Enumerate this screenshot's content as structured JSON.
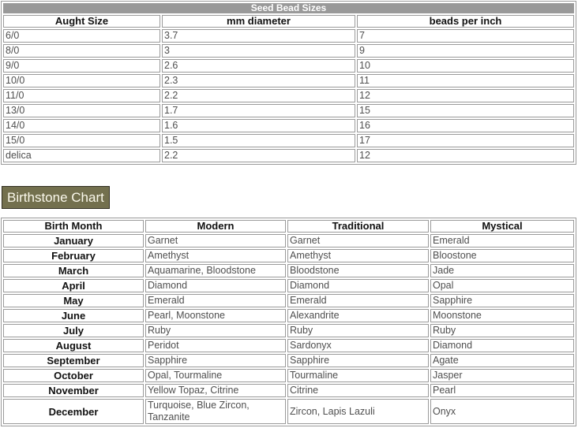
{
  "colors": {
    "table_border": "#9a9a9a",
    "title_bar_bg": "#999999",
    "title_bar_text": "#ffffff",
    "cell_text": "#4f4f4f",
    "header_text": "#111111",
    "heading_bg": "#73704E",
    "heading_text": "#FBF9EC",
    "heading_border": "#302E20"
  },
  "seed_table": {
    "title": "Seed Bead Sizes",
    "columns": [
      "Aught Size",
      "mm diameter",
      "beads per inch"
    ],
    "rows": [
      [
        "6/0",
        "3.7",
        "7"
      ],
      [
        "8/0",
        "3",
        "9"
      ],
      [
        "9/0",
        "2.6",
        "10"
      ],
      [
        "10/0",
        "2.3",
        "11"
      ],
      [
        "11/0",
        "2.2",
        "12"
      ],
      [
        "13/0",
        "1.7",
        "15"
      ],
      [
        "14/0",
        "1.6",
        "16"
      ],
      [
        "15/0",
        "1.5",
        "17"
      ],
      [
        "delica",
        "2.2",
        "12"
      ]
    ]
  },
  "birthstone": {
    "heading": "Birthstone Chart",
    "columns": [
      "Birth Month",
      "Modern",
      "Traditional",
      "Mystical"
    ],
    "rows": [
      [
        "January",
        "Garnet",
        "Garnet",
        "Emerald"
      ],
      [
        "February",
        "Amethyst",
        "Amethyst",
        "Bloostone"
      ],
      [
        "March",
        "Aquamarine, Bloodstone",
        "Bloodstone",
        "Jade"
      ],
      [
        "April",
        "Diamond",
        "Diamond",
        "Opal"
      ],
      [
        "May",
        "Emerald",
        "Emerald",
        "Sapphire"
      ],
      [
        "June",
        "Pearl, Moonstone",
        "Alexandrite",
        "Moonstone"
      ],
      [
        "July",
        "Ruby",
        "Ruby",
        "Ruby"
      ],
      [
        "August",
        "Peridot",
        "Sardonyx",
        "Diamond"
      ],
      [
        "September",
        "Sapphire",
        "Sapphire",
        "Agate"
      ],
      [
        "October",
        "Opal, Tourmaline",
        "Tourmaline",
        "Jasper"
      ],
      [
        "November",
        "Yellow Topaz, Citrine",
        "Citrine",
        "Pearl"
      ],
      [
        "December",
        "Turquoise, Blue Zircon, Tanzanite",
        "Zircon, Lapis Lazuli",
        "Onyx"
      ]
    ]
  }
}
